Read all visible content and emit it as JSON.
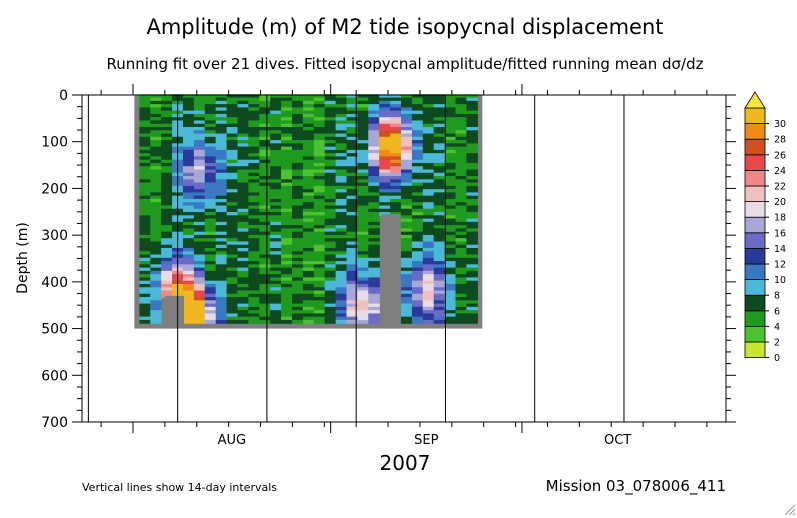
{
  "chart_data": {
    "type": "heatmap",
    "title": "Amplitude (m) of M2 tide isopycnal displacement",
    "subtitle": "Running fit over 21 dives. Fitted isopycnal amplitude/fitted running mean dσ/dz",
    "ylabel": "Depth (m)",
    "ylim": [
      0,
      700
    ],
    "y_ticks": [
      "0",
      "100",
      "200",
      "300",
      "400",
      "500",
      "600",
      "700"
    ],
    "x_month_labels": [
      "AUG",
      "SEP",
      "OCT"
    ],
    "x_year_label": "2007",
    "x_range_days": [
      -8,
      93
    ],
    "month_starts_days": [
      0,
      31,
      61
    ],
    "interval_lines_days": [
      -7,
      7,
      21,
      35,
      49,
      63,
      77
    ],
    "data_extent_days": [
      1,
      54
    ],
    "data_extent_depth": [
      0,
      500
    ],
    "color_scale": {
      "levels": [
        0,
        2,
        4,
        6,
        8,
        10,
        12,
        14,
        16,
        18,
        20,
        22,
        24,
        26,
        28,
        30
      ],
      "labels": [
        "0",
        "2",
        "4",
        "6",
        "8",
        "10",
        "12",
        "14",
        "16",
        "18",
        "20",
        "22",
        "24",
        "26",
        "28",
        "30"
      ],
      "colors": [
        "#c8e632",
        "#4cc32e",
        "#1f9a1f",
        "#0d4a1f",
        "#4ab8d6",
        "#3a78c4",
        "#2a3a9a",
        "#6a6ac8",
        "#a8a8d8",
        "#e8dce8",
        "#f0c0c0",
        "#f08888",
        "#e84848",
        "#d05020",
        "#f08a18",
        "#f0b820",
        "#f8e838"
      ]
    },
    "hotspots": [
      {
        "day": 10.5,
        "depth": 160,
        "value": 12,
        "label": "early Aug mid-depth maximum"
      },
      {
        "day": 7.0,
        "depth": 420,
        "value": 18,
        "label": "early Aug deep maximum"
      },
      {
        "day": 9.5,
        "depth": 480,
        "value": 26,
        "label": "early Aug bottom maximum"
      },
      {
        "day": 40.5,
        "depth": 110,
        "value": 28,
        "label": "Sep upper maximum"
      },
      {
        "day": 36.0,
        "depth": 450,
        "value": 16,
        "label": "Sep deep band"
      },
      {
        "day": 46.0,
        "depth": 420,
        "value": 14,
        "label": "late Sep deep patch"
      }
    ],
    "missing_regions": [
      {
        "days": [
          5,
          8
        ],
        "depth": [
          430,
          500
        ]
      },
      {
        "days": [
          39,
          42
        ],
        "depth": [
          255,
          500
        ]
      }
    ]
  },
  "footer": {
    "note": "Vertical lines show 14-day intervals",
    "mission": "Mission 03_078006_411"
  }
}
